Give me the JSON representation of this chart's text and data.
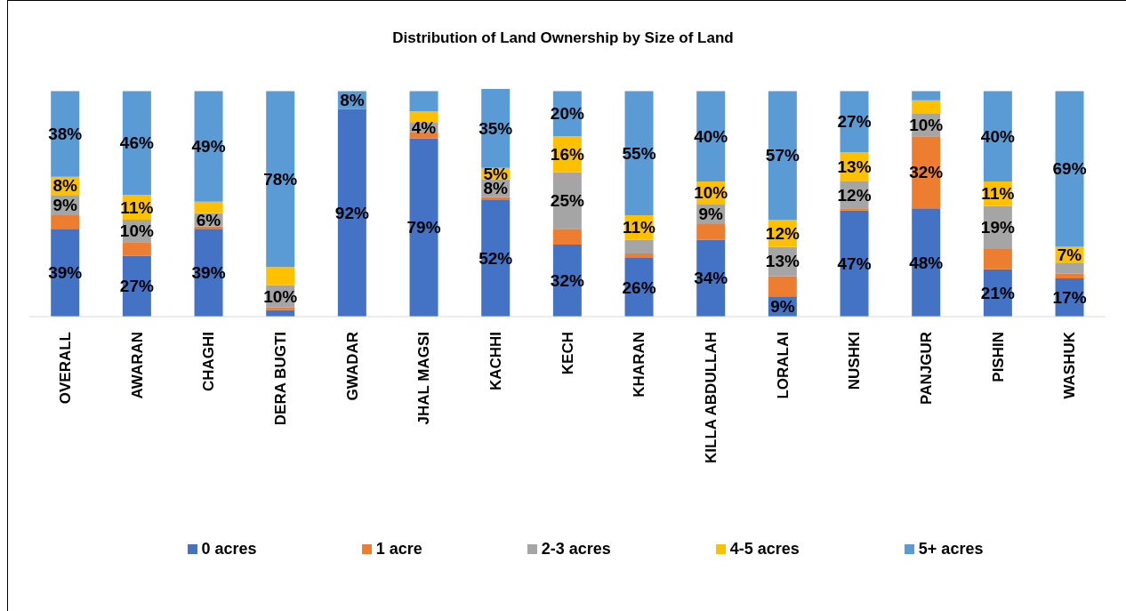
{
  "chart_data": {
    "type": "bar",
    "title": "Distribution of Land Ownership by Size of Land",
    "categories": [
      "OVERALL",
      "AWARAN",
      "CHAGHI",
      "DERA BUGTI",
      "GWADAR",
      "JHAL MAGSI",
      "KACHHI",
      "KECH",
      "KHARAN",
      "KILLA ABDULLAH",
      "LORALAI",
      "NUSHKI",
      "PANJGUR",
      "PISHIN",
      "WASHUK"
    ],
    "series": [
      {
        "name": "0 acres",
        "color": "#4472c4",
        "values": [
          39,
          27,
          39,
          3,
          92,
          79,
          52,
          32,
          26,
          34,
          9,
          47,
          48,
          21,
          17
        ],
        "value_labels": [
          "39%",
          "27%",
          "39%",
          null,
          "92%",
          "79%",
          "52%",
          "32%",
          "26%",
          "34%",
          "9%",
          "47%",
          "48%",
          "21%",
          "17%"
        ]
      },
      {
        "name": "1 acre",
        "color": "#ed7d31",
        "values": [
          6,
          6,
          1,
          1,
          0,
          3,
          1,
          7,
          2,
          7,
          9,
          1,
          32,
          9,
          2
        ],
        "value_labels": [
          null,
          null,
          null,
          null,
          null,
          null,
          null,
          null,
          null,
          null,
          null,
          null,
          "32%",
          null,
          null
        ]
      },
      {
        "name": "2-3 acres",
        "color": "#a5a5a5",
        "values": [
          9,
          10,
          6,
          10,
          0,
          4,
          8,
          25,
          6,
          9,
          13,
          12,
          10,
          19,
          5
        ],
        "value_labels": [
          "9%",
          "10%",
          "6%",
          "10%",
          null,
          "4%",
          "8%",
          "25%",
          null,
          "9%",
          "13%",
          "12%",
          "10%",
          "19%",
          null
        ]
      },
      {
        "name": "4-5 acres",
        "color": "#ffc000",
        "values": [
          8,
          11,
          5,
          8,
          0,
          5,
          5,
          16,
          11,
          10,
          12,
          13,
          6,
          11,
          7
        ],
        "value_labels": [
          "8%",
          "11%",
          null,
          null,
          null,
          null,
          "5%",
          "16%",
          "11%",
          "10%",
          "12%",
          "13%",
          null,
          "11%",
          "7%"
        ]
      },
      {
        "name": "5+ acres",
        "color": "#5b9bd5",
        "values": [
          38,
          46,
          49,
          78,
          8,
          9,
          35,
          20,
          55,
          40,
          57,
          27,
          4,
          40,
          69
        ],
        "value_labels": [
          "38%",
          "46%",
          "49%",
          "78%",
          "8%",
          null,
          "35%",
          "20%",
          "55%",
          "40%",
          "57%",
          "27%",
          null,
          "40%",
          "69%"
        ]
      }
    ],
    "stacked": true,
    "legend": "bottom",
    "tick_labels": "x"
  }
}
